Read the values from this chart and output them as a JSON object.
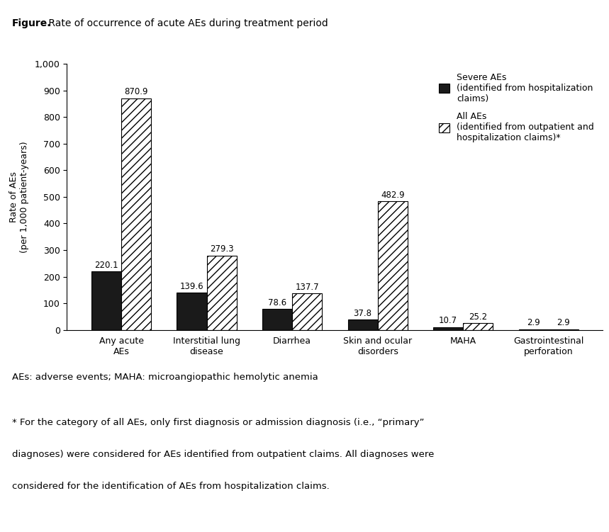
{
  "title_bold": "Figure.",
  "title_regular": " Rate of occurrence of acute AEs during treatment period",
  "categories": [
    "Any acute\nAEs",
    "Interstitial lung\ndisease",
    "Diarrhea",
    "Skin and ocular\ndisorders",
    "MAHA",
    "Gastrointestinal\nperforation"
  ],
  "severe_values": [
    220.1,
    139.6,
    78.6,
    37.8,
    10.7,
    2.9
  ],
  "all_values": [
    870.9,
    279.3,
    137.7,
    482.9,
    25.2,
    2.9
  ],
  "severe_color": "#1a1a1a",
  "all_color": "#ffffff",
  "all_hatch": "///",
  "ylabel": "Rate of AEs\n(per 1,000 patient-years)",
  "ylim": [
    0,
    1000
  ],
  "yticks": [
    0,
    100,
    200,
    300,
    400,
    500,
    600,
    700,
    800,
    900,
    1000
  ],
  "ytick_labels": [
    "0",
    "100",
    "200",
    "300",
    "400",
    "500",
    "600",
    "700",
    "800",
    "900",
    "1,000"
  ],
  "legend_severe_label": "Severe AEs\n(identified from hospitalization\nclaims)",
  "legend_all_label": "All AEs\n(identified from outpatient and\nhospitalization claims)*",
  "footnote1": "AEs: adverse events; MAHA: microangiopathic hemolytic anemia",
  "footnote2a": "* For the category of all AEs, only first diagnosis or admission diagnosis (i.e., “primary”",
  "footnote2b": "diagnoses) were considered for AEs identified from outpatient claims. All diagnoses were",
  "footnote2c": "considered for the identification of AEs from hospitalization claims.",
  "bar_width": 0.35,
  "background_color": "#ffffff",
  "font_size": 9,
  "label_fontsize": 8.5
}
